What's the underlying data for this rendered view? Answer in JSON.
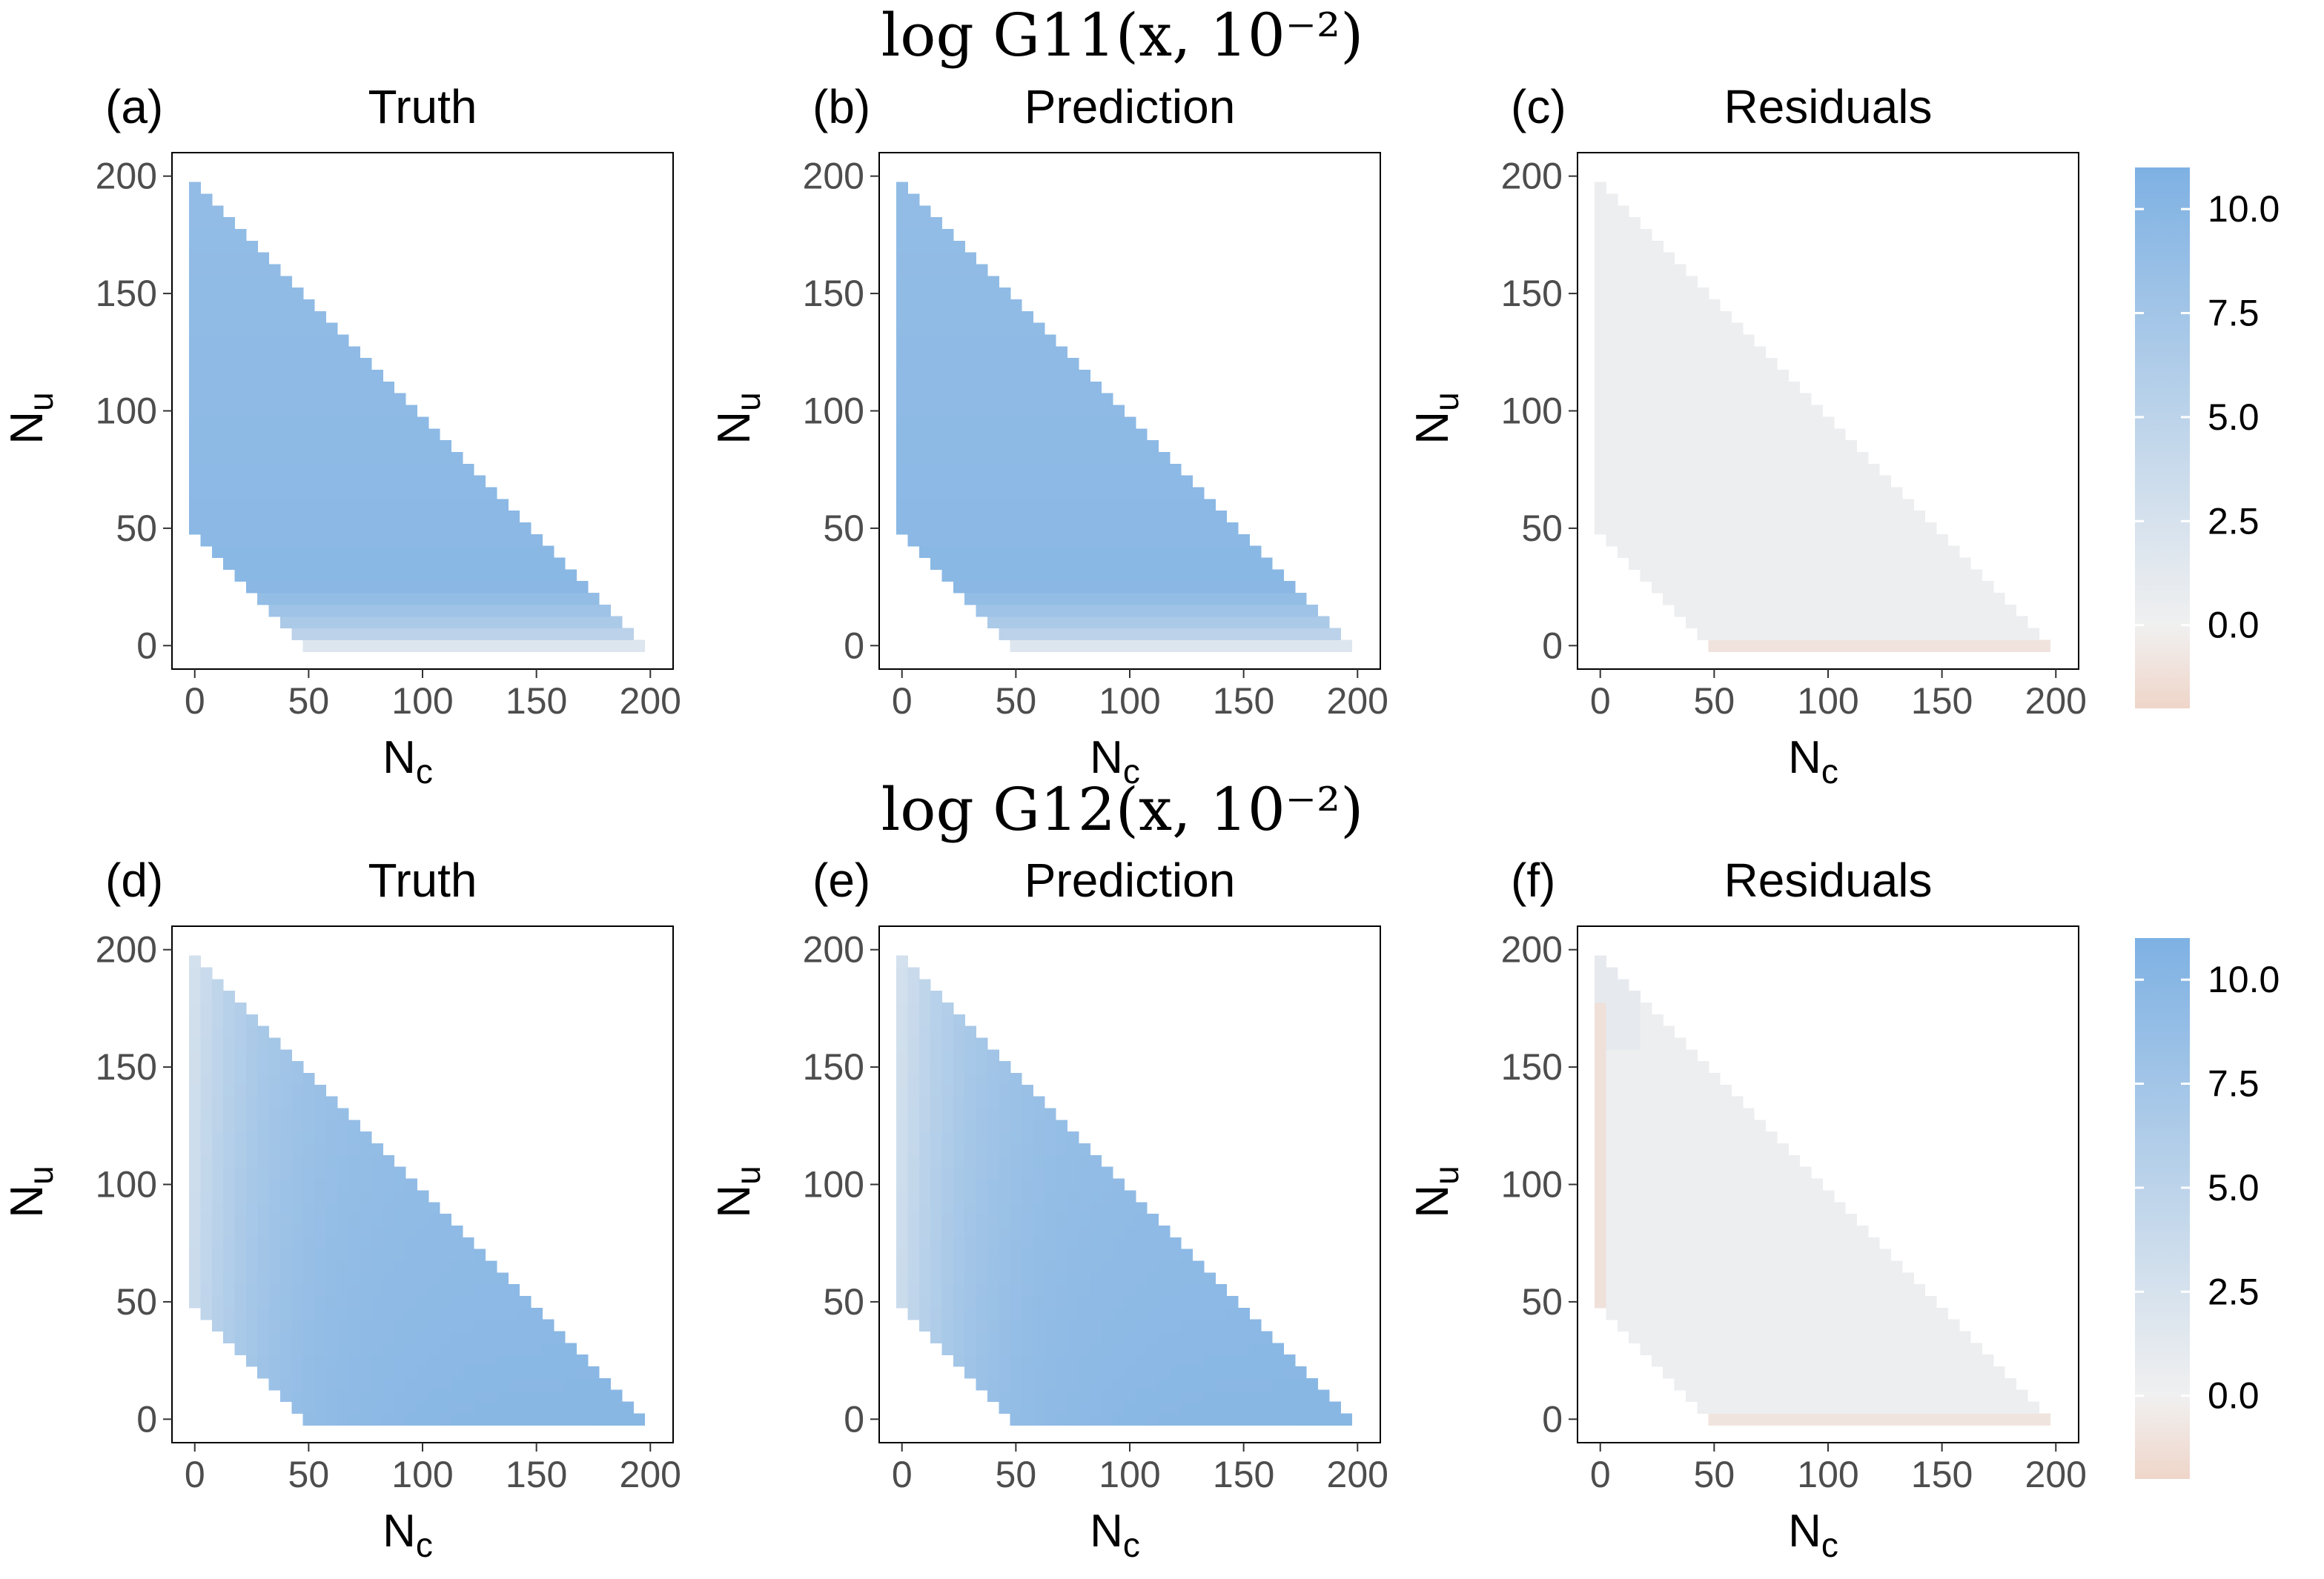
{
  "figure": {
    "row_titles": [
      "log G11(x, 10⁻²)",
      "log G12(x, 10⁻²)"
    ],
    "colors": {
      "low": "#efd5c9",
      "zero": "#f0f0f0",
      "high": "#7eb1e3"
    }
  },
  "chart_data": [
    {
      "type": "heatmap",
      "label": "(a)",
      "title": "Truth",
      "xlabel": "Nc",
      "ylabel": "Nu",
      "xlim": [
        0,
        200
      ],
      "ylim": [
        0,
        200
      ],
      "xticks": [
        "0",
        "50",
        "100",
        "150",
        "200"
      ],
      "yticks": [
        "0",
        "50",
        "100",
        "150",
        "200"
      ],
      "domain": "Nc + Nu ≤ 200, Nc + Nu ≥ 50",
      "cell_size": 5,
      "pattern": "g11",
      "value_range": [
        0,
        10.3
      ]
    },
    {
      "type": "heatmap",
      "label": "(b)",
      "title": "Prediction",
      "xlabel": "Nc",
      "ylabel": "Nu",
      "xlim": [
        0,
        200
      ],
      "ylim": [
        0,
        200
      ],
      "xticks": [
        "0",
        "50",
        "100",
        "150",
        "200"
      ],
      "yticks": [
        "0",
        "50",
        "100",
        "150",
        "200"
      ],
      "domain": "Nc + Nu ≤ 200, Nc + Nu ≥ 50",
      "cell_size": 5,
      "pattern": "g11",
      "value_range": [
        0,
        10.3
      ]
    },
    {
      "type": "heatmap",
      "label": "(c)",
      "title": "Residuals",
      "xlabel": "Nc",
      "ylabel": "Nu",
      "xlim": [
        0,
        200
      ],
      "ylim": [
        0,
        200
      ],
      "xticks": [
        "0",
        "50",
        "100",
        "150",
        "200"
      ],
      "yticks": [
        "0",
        "50",
        "100",
        "150",
        "200"
      ],
      "domain": "Nc + Nu ≤ 200, Nc + Nu ≥ 50",
      "cell_size": 5,
      "pattern": "res11",
      "value_range": [
        -1.5,
        0.6
      ]
    },
    {
      "type": "heatmap",
      "label": "(d)",
      "title": "Truth",
      "xlabel": "Nc",
      "ylabel": "Nu",
      "xlim": [
        0,
        200
      ],
      "ylim": [
        0,
        200
      ],
      "xticks": [
        "0",
        "50",
        "100",
        "150",
        "200"
      ],
      "yticks": [
        "0",
        "50",
        "100",
        "150",
        "200"
      ],
      "domain": "Nc + Nu ≤ 200, Nc + Nu ≥ 50",
      "cell_size": 5,
      "pattern": "g12",
      "value_range": [
        3.5,
        10
      ]
    },
    {
      "type": "heatmap",
      "label": "(e)",
      "title": "Prediction",
      "xlabel": "Nc",
      "ylabel": "Nu",
      "xlim": [
        0,
        200
      ],
      "ylim": [
        0,
        200
      ],
      "xticks": [
        "0",
        "50",
        "100",
        "150",
        "200"
      ],
      "yticks": [
        "0",
        "50",
        "100",
        "150",
        "200"
      ],
      "domain": "Nc + Nu ≤ 200, Nc + Nu ≥ 50",
      "cell_size": 5,
      "pattern": "g12",
      "value_range": [
        3.5,
        10
      ]
    },
    {
      "type": "heatmap",
      "label": "(f)",
      "title": "Residuals",
      "xlabel": "Nc",
      "ylabel": "Nu",
      "xlim": [
        0,
        200
      ],
      "ylim": [
        0,
        200
      ],
      "xticks": [
        "0",
        "50",
        "100",
        "150",
        "200"
      ],
      "yticks": [
        "0",
        "50",
        "100",
        "150",
        "200"
      ],
      "domain": "Nc + Nu ≤ 200, Nc + Nu ≥ 50",
      "cell_size": 5,
      "pattern": "res12",
      "value_range": [
        -1.5,
        1.2
      ]
    }
  ],
  "colorbars": [
    {
      "range": [
        -2,
        11
      ],
      "ticks": [
        10.0,
        7.5,
        5.0,
        2.5,
        0.0
      ],
      "tick_labels": [
        "10.0",
        "7.5",
        "5.0",
        "2.5",
        "0.0"
      ]
    },
    {
      "range": [
        -2,
        11
      ],
      "ticks": [
        10.0,
        7.5,
        5.0,
        2.5,
        0.0
      ],
      "tick_labels": [
        "10.0",
        "7.5",
        "5.0",
        "2.5",
        "0.0"
      ]
    }
  ]
}
